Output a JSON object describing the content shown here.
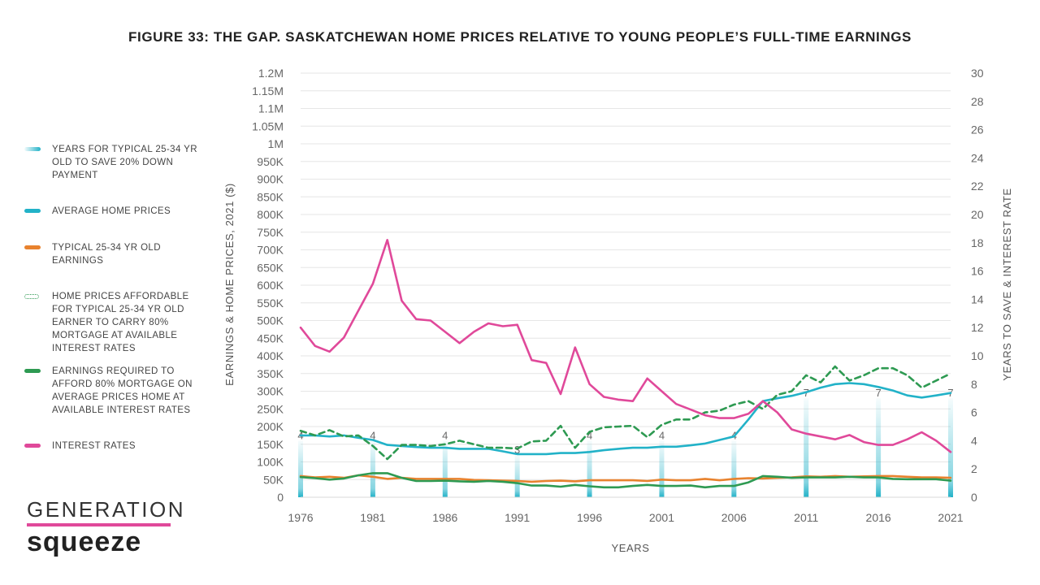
{
  "title": "FIGURE 33: THE GAP. SASKATCHEWAN HOME PRICES RELATIVE TO YOUNG PEOPLE’S FULL-TIME EARNINGS",
  "brand": {
    "top": "GENERATION",
    "bottom": "squeeze"
  },
  "legend": [
    {
      "label": "YEARS FOR TYPICAL 25-34 YR OLD TO SAVE 20% DOWN PAYMENT",
      "icon": "gradient-bar",
      "color": "#22b2c8"
    },
    {
      "label": "AVERAGE HOME PRICES",
      "icon": "line",
      "color": "#22b2c8"
    },
    {
      "label": "TYPICAL 25-34 YR OLD EARNINGS",
      "icon": "line",
      "color": "#e8822e"
    },
    {
      "label": "HOME PRICES AFFORDABLE FOR TYPICAL 25-34 YR OLD EARNER TO CARRY 80% MORTGAGE AT AVAILABLE INTEREST RATES",
      "icon": "dashed-line",
      "color": "#2e9a52"
    },
    {
      "label": "EARNINGS REQUIRED TO AFFORD 80% MORTGAGE ON AVERAGE PRICES HOME AT AVAILABLE INTEREST RATES",
      "icon": "line",
      "color": "#2e9a52"
    },
    {
      "label": "INTEREST RATES",
      "icon": "line",
      "color": "#e0499a"
    }
  ],
  "chart_data": {
    "type": "line",
    "xlabel": "YEARS",
    "ylabel_left": "EARNINGS & HOME PRICES, 2021 ($)",
    "ylabel_right": "YEARS TO SAVE & INTEREST RATE",
    "x_ticks": [
      1976,
      1981,
      1986,
      1991,
      1996,
      2001,
      2006,
      2011,
      2016,
      2021
    ],
    "y_left_ticks": [
      "0",
      "50K",
      "100K",
      "150K",
      "200K",
      "250K",
      "300K",
      "350K",
      "400K",
      "450K",
      "500K",
      "550K",
      "600K",
      "650K",
      "700K",
      "750K",
      "800K",
      "850K",
      "900K",
      "950K",
      "1M",
      "1.05M",
      "1.1M",
      "1.15M",
      "1.2M"
    ],
    "y_right_ticks": [
      "0",
      "2",
      "4",
      "6",
      "8",
      "10",
      "12",
      "14",
      "16",
      "18",
      "20",
      "22",
      "24",
      "26",
      "28",
      "30"
    ],
    "ylim_left": [
      0,
      1200000
    ],
    "ylim_right": [
      0,
      30
    ],
    "grid": true,
    "years": [
      1976,
      1977,
      1978,
      1979,
      1980,
      1981,
      1982,
      1983,
      1984,
      1985,
      1986,
      1987,
      1988,
      1989,
      1990,
      1991,
      1992,
      1993,
      1994,
      1995,
      1996,
      1997,
      1998,
      1999,
      2000,
      2001,
      2002,
      2003,
      2004,
      2005,
      2006,
      2007,
      2008,
      2009,
      2010,
      2011,
      2012,
      2013,
      2014,
      2015,
      2016,
      2017,
      2018,
      2019,
      2020,
      2021
    ],
    "series": [
      {
        "name": "AVERAGE HOME PRICES",
        "axis": "left",
        "color": "#22b2c8",
        "style": "solid",
        "values": [
          175000,
          175000,
          172000,
          175000,
          168000,
          162000,
          148000,
          145000,
          142000,
          140000,
          140000,
          137000,
          137000,
          137000,
          130000,
          122000,
          122000,
          122000,
          125000,
          125000,
          128000,
          133000,
          137000,
          140000,
          140000,
          143000,
          143000,
          147000,
          152000,
          162000,
          172000,
          220000,
          272000,
          280000,
          287000,
          297000,
          310000,
          320000,
          323000,
          320000,
          312000,
          302000,
          288000,
          282000,
          288000,
          295000
        ]
      },
      {
        "name": "TYPICAL 25-34 YR OLD EARNINGS",
        "axis": "left",
        "color": "#e8822e",
        "style": "solid",
        "values": [
          60000,
          56000,
          58000,
          55000,
          62000,
          58000,
          52000,
          55000,
          52000,
          52000,
          52000,
          52000,
          49000,
          48000,
          47000,
          46000,
          44000,
          46000,
          47000,
          45000,
          48000,
          48000,
          48000,
          48000,
          46000,
          50000,
          48000,
          48000,
          52000,
          48000,
          52000,
          54000,
          53000,
          55000,
          56000,
          59000,
          58000,
          60000,
          58000,
          59000,
          60000,
          60000,
          58000,
          56000,
          56000,
          55000
        ]
      },
      {
        "name": "HOME PRICES AFFORDABLE FOR TYPICAL 25-34 YR OLD EARNER TO CARRY 80% MORTGAGE AT AVAILABLE INTEREST RATES",
        "axis": "left",
        "color": "#2e9a52",
        "style": "dashed",
        "values": [
          188000,
          175000,
          190000,
          172000,
          175000,
          145000,
          108000,
          148000,
          148000,
          145000,
          150000,
          160000,
          150000,
          140000,
          140000,
          138000,
          158000,
          160000,
          202000,
          140000,
          185000,
          198000,
          200000,
          202000,
          170000,
          205000,
          220000,
          220000,
          240000,
          245000,
          262000,
          272000,
          250000,
          290000,
          300000,
          345000,
          325000,
          370000,
          330000,
          345000,
          365000,
          365000,
          345000,
          310000,
          330000,
          350000
        ]
      },
      {
        "name": "EARNINGS REQUIRED TO AFFORD 80% MORTGAGE ON AVERAGE PRICES HOME AT AVAILABLE INTEREST RATES",
        "axis": "left",
        "color": "#2e9a52",
        "style": "solid",
        "values": [
          57000,
          54000,
          50000,
          53000,
          62000,
          68000,
          68000,
          55000,
          46000,
          46000,
          47000,
          45000,
          44000,
          46000,
          44000,
          40000,
          33000,
          33000,
          30000,
          35000,
          31000,
          28000,
          28000,
          32000,
          35000,
          32000,
          32000,
          33000,
          28000,
          32000,
          32000,
          42000,
          60000,
          58000,
          55000,
          56000,
          56000,
          56000,
          58000,
          56000,
          56000,
          52000,
          51000,
          51000,
          51000,
          47000
        ]
      },
      {
        "name": "INTEREST RATES",
        "axis": "right",
        "color": "#e0499a",
        "style": "solid",
        "values": [
          12.0,
          10.7,
          10.3,
          11.3,
          13.2,
          15.1,
          18.2,
          13.9,
          12.6,
          12.5,
          11.7,
          10.9,
          11.7,
          12.3,
          12.1,
          12.2,
          9.7,
          9.5,
          7.3,
          10.6,
          8.0,
          7.1,
          6.9,
          6.8,
          8.4,
          7.5,
          6.6,
          6.2,
          5.8,
          5.6,
          5.6,
          5.9,
          6.8,
          6.0,
          4.8,
          4.5,
          4.3,
          4.1,
          4.4,
          3.9,
          3.7,
          3.7,
          4.1,
          4.6,
          4.0,
          3.2
        ]
      }
    ],
    "bars": {
      "name": "YEARS FOR TYPICAL 25-34 YR OLD TO SAVE 20% DOWN PAYMENT",
      "axis": "right",
      "color": "#22b2c8",
      "years": [
        1976,
        1981,
        1986,
        1991,
        1996,
        2001,
        2006,
        2011,
        2016,
        2021
      ],
      "values": [
        4,
        4,
        4,
        3,
        4,
        4,
        4,
        7,
        7,
        7
      ],
      "labels": [
        "4",
        "4",
        "4",
        "3",
        "4",
        "4",
        "4",
        "7",
        "7",
        "7"
      ]
    }
  }
}
